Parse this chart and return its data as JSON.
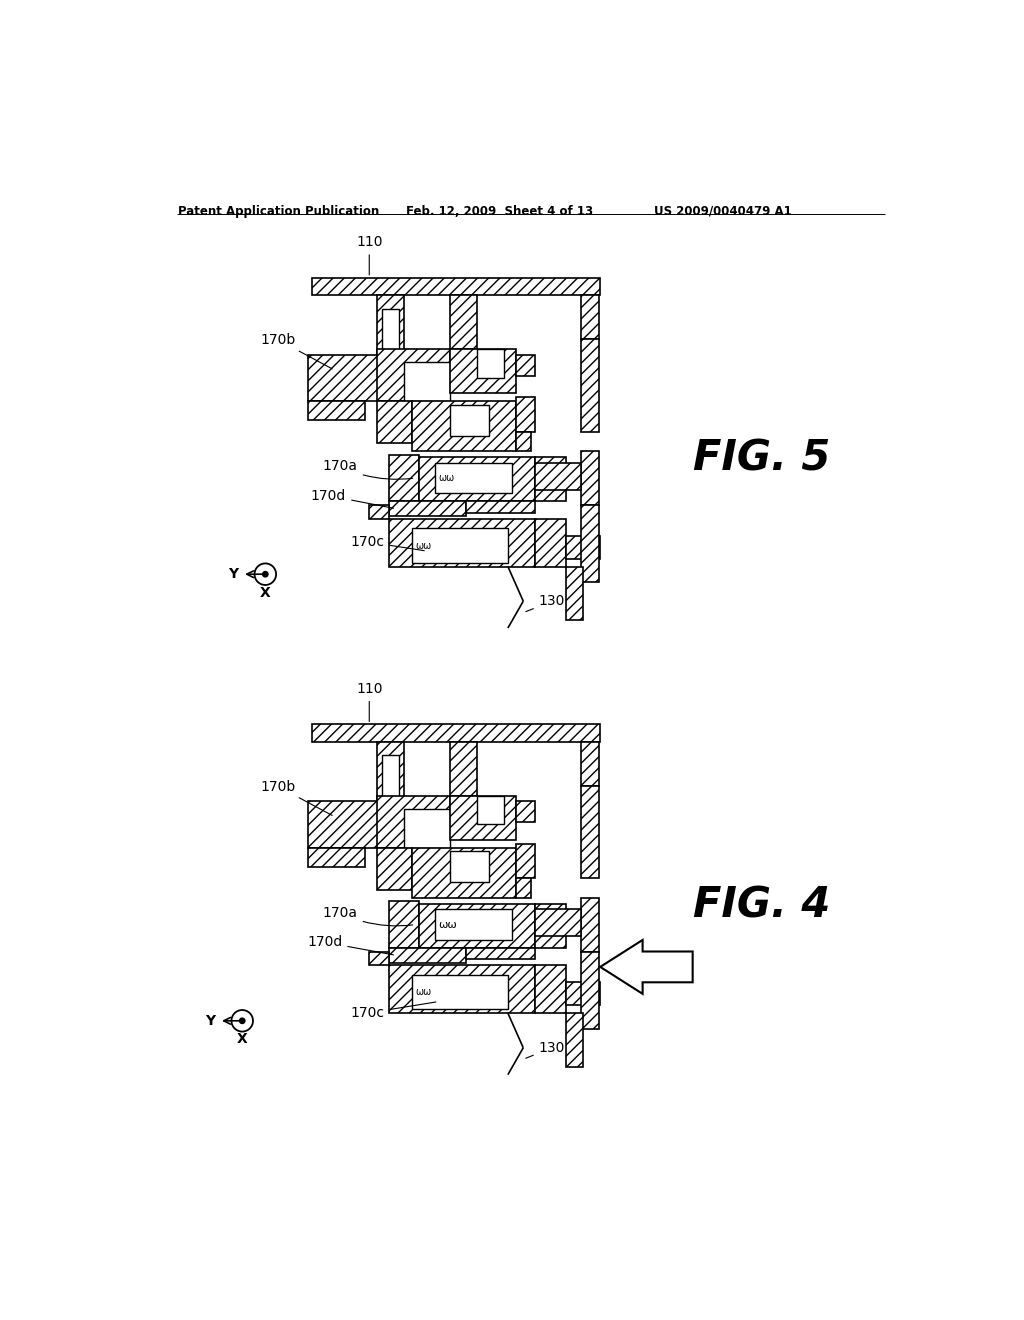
{
  "header_left": "Patent Application Publication",
  "header_mid": "Feb. 12, 2009  Sheet 4 of 13",
  "header_right": "US 2009/0040479 A1",
  "fig4_label": "FIG. 4",
  "fig5_label": "FIG. 5",
  "background": "#ffffff"
}
